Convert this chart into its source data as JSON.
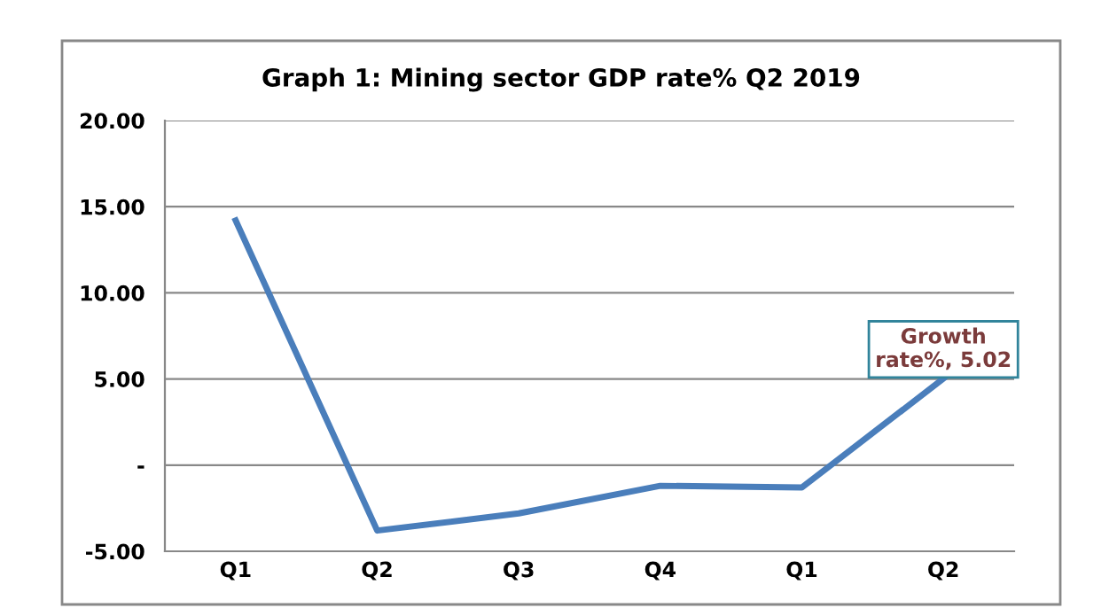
{
  "chart_data": {
    "type": "line",
    "title": "Graph 1: Mining sector GDP rate% Q2 2019",
    "categories": [
      "Q1",
      "Q2",
      "Q3",
      "Q4",
      "Q1",
      "Q2"
    ],
    "series": [
      {
        "color": "#4a7ebb",
        "values": [
          14.2,
          -3.8,
          -2.8,
          -1.2,
          -1.3,
          5.02
        ],
        "value_labels": [
          null,
          null,
          null,
          null,
          null,
          "Growth\nrate%, 5.02"
        ]
      }
    ],
    "ylim": [
      -5,
      20
    ],
    "yticks": [
      {
        "value": -5,
        "label": "-5.00"
      },
      {
        "value": 0,
        "label": "-"
      },
      {
        "value": 5,
        "label": "5.00"
      },
      {
        "value": 10,
        "label": "10.00"
      },
      {
        "value": 15,
        "label": "15.00"
      },
      {
        "value": 20,
        "label": "20.00"
      }
    ],
    "grid": "y",
    "marker": "none",
    "line_style": "solid",
    "legend": false
  }
}
